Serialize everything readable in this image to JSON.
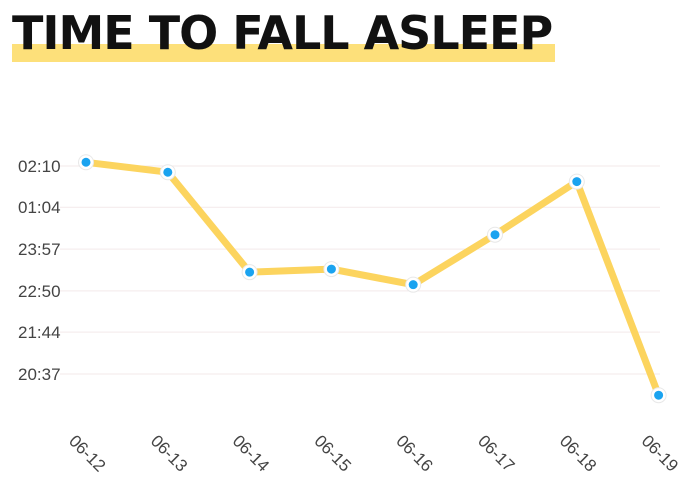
{
  "title": "TIME TO FALL ASLEEP",
  "colors": {
    "line": "#fcd45e",
    "point": "#1aa3f0",
    "title_highlight": "#fde07a",
    "grid": "#f3e9ea"
  },
  "chart_data": {
    "type": "line",
    "title": "TIME TO FALL ASLEEP",
    "xlabel": "",
    "ylabel": "",
    "categories": [
      "06-12",
      "06-13",
      "06-14",
      "06-15",
      "06-16",
      "06-17",
      "06-18",
      "06-19"
    ],
    "values": [
      "02:16",
      "02:00",
      "23:20",
      "23:25",
      "23:00",
      "00:20",
      "01:45",
      "20:03"
    ],
    "y_ticks": [
      "02:10",
      "01:04",
      "23:57",
      "22:50",
      "21:44",
      "20:37"
    ],
    "grid": true,
    "legend": "none"
  }
}
